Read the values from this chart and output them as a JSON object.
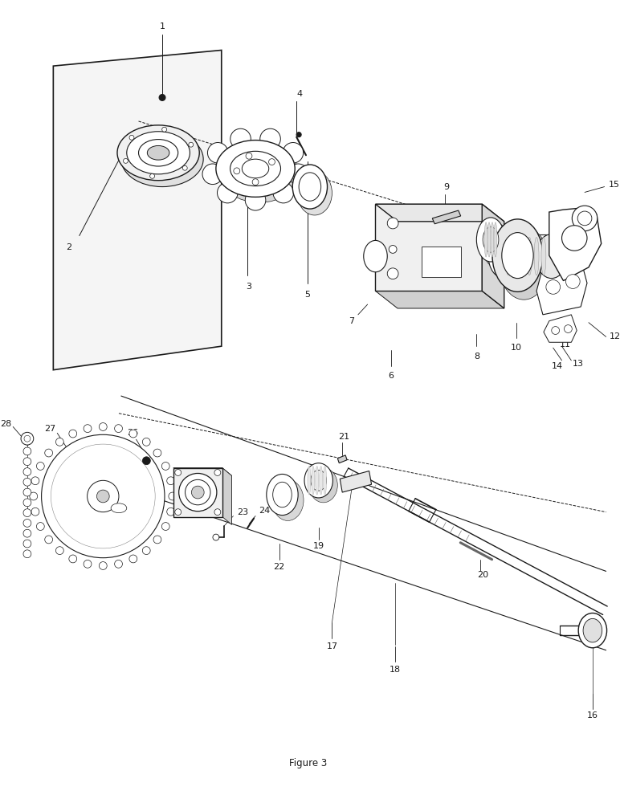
{
  "bg_color": "#ffffff",
  "line_color": "#1a1a1a",
  "caption": "Figure 3",
  "fig_width": 7.72,
  "fig_height": 10.0
}
